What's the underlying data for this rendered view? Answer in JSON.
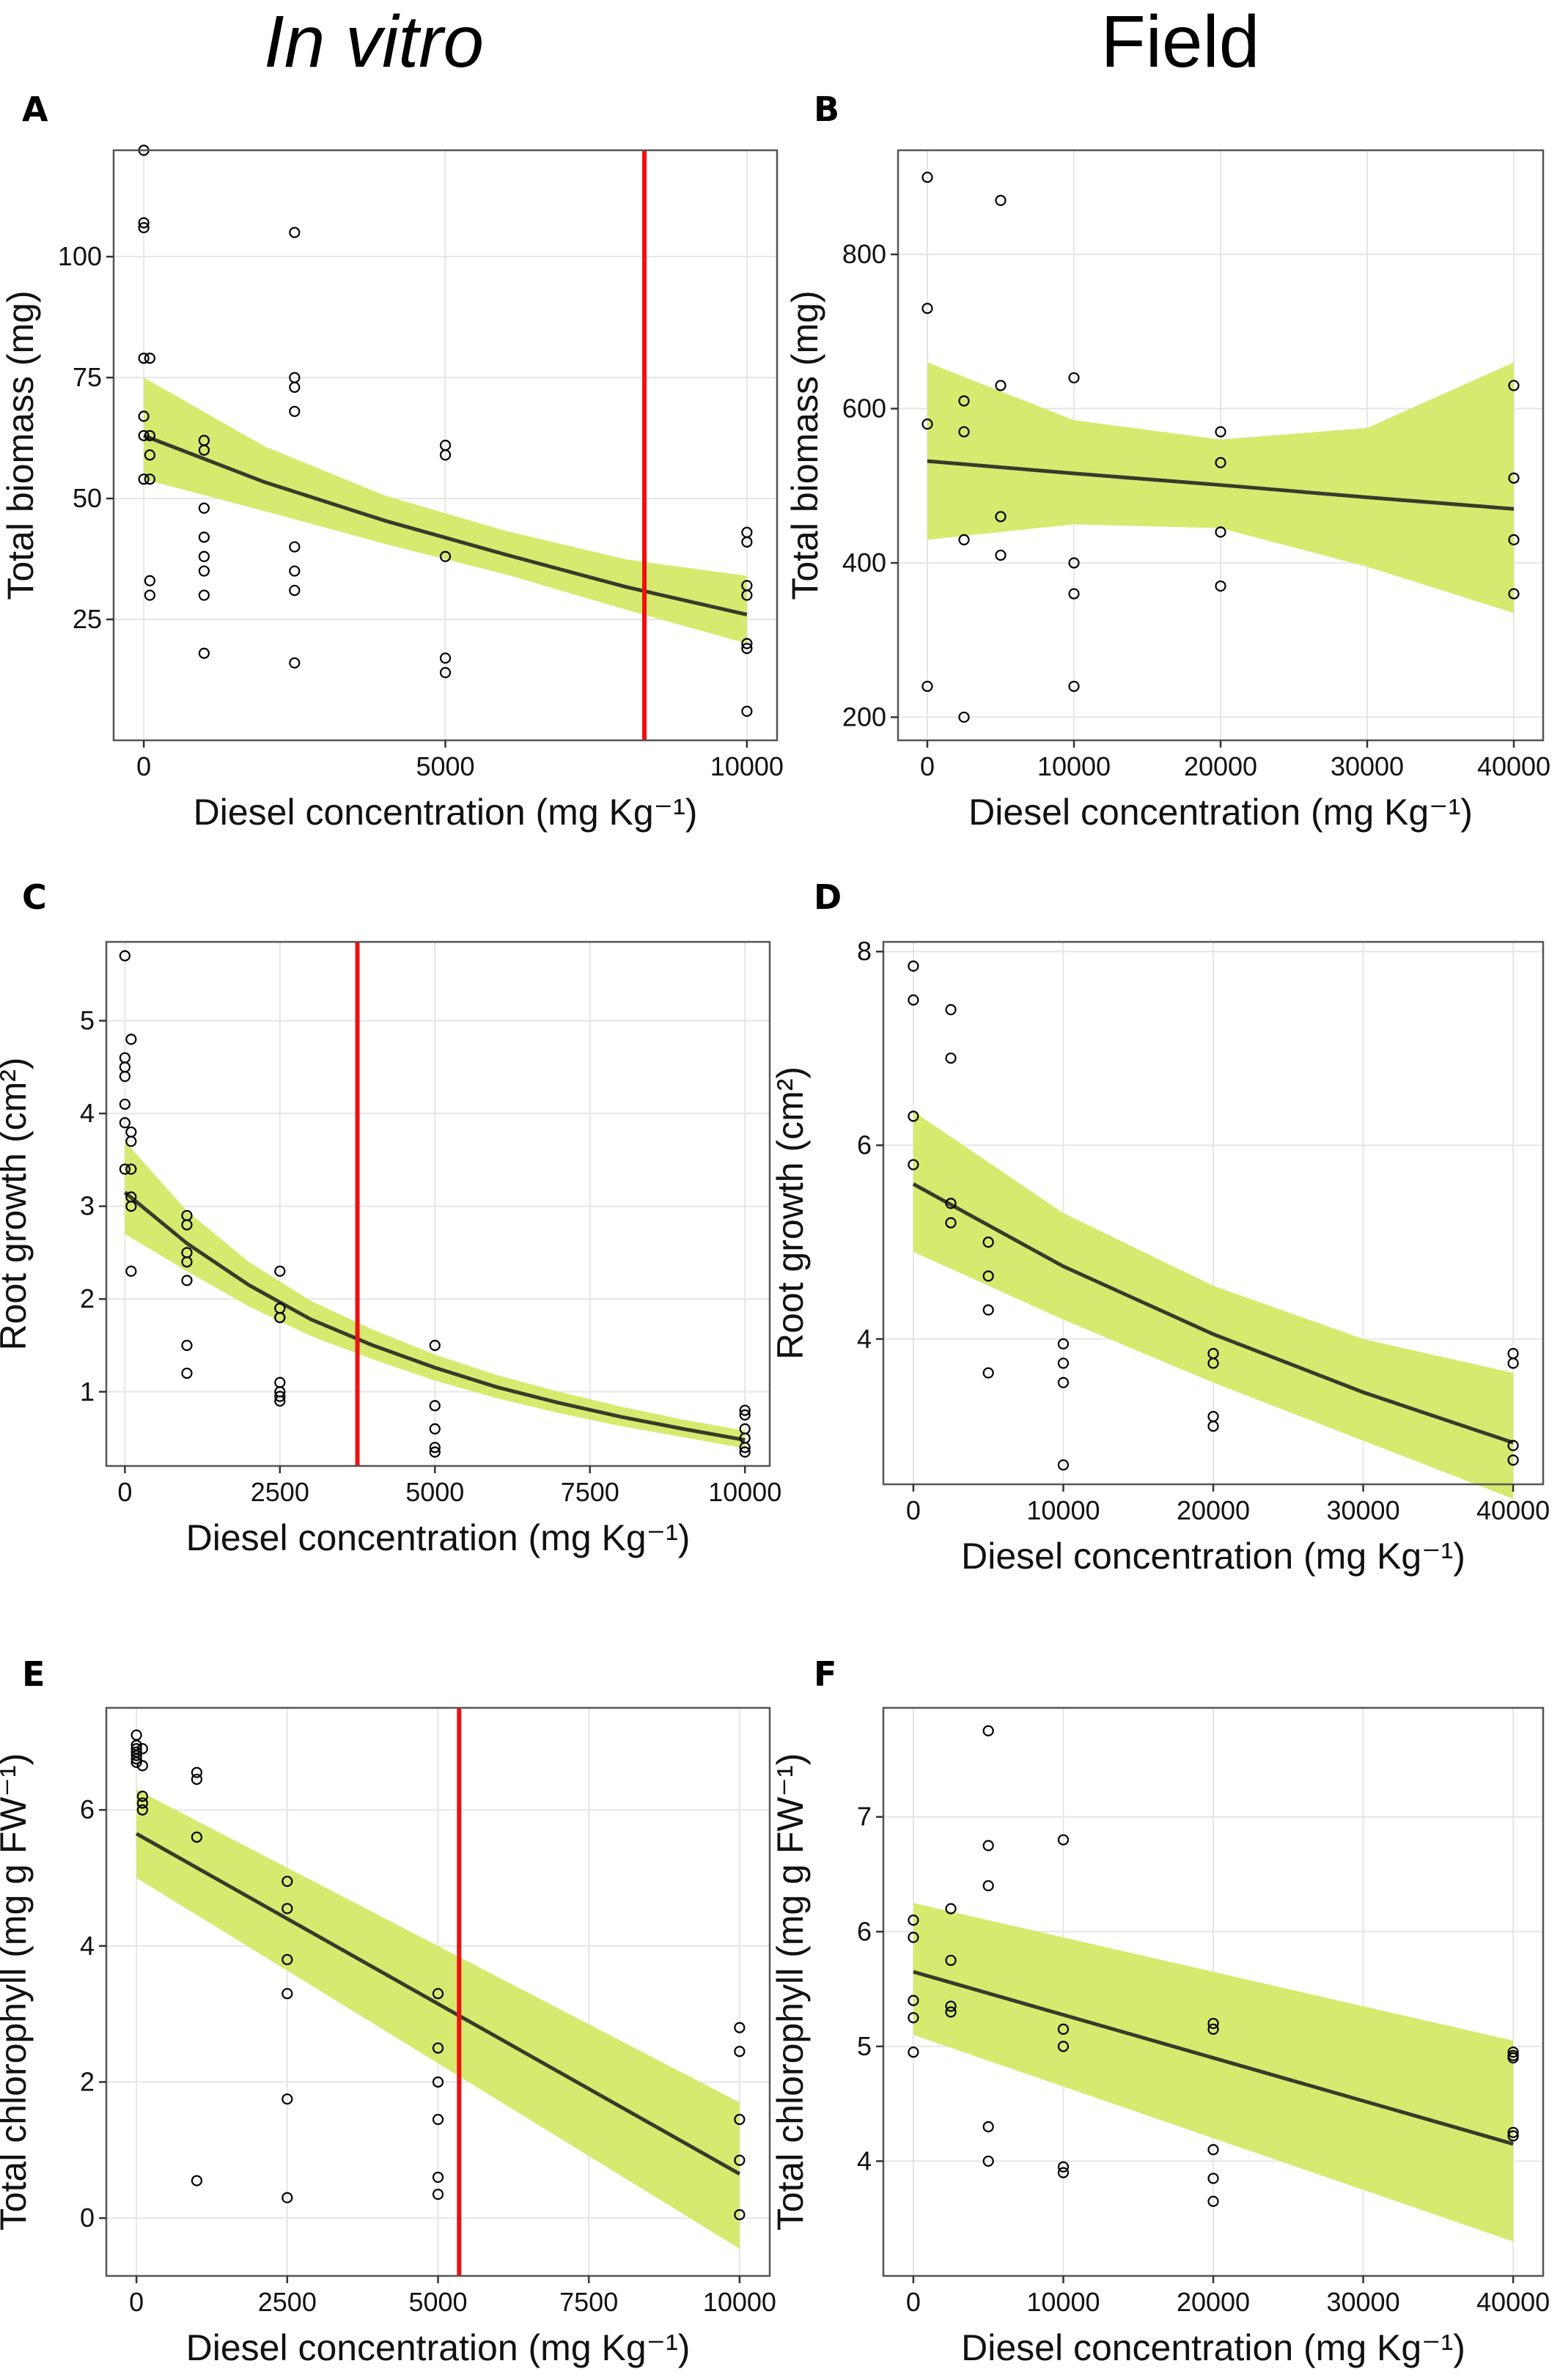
{
  "column_titles": {
    "left": "In vitro",
    "right": "Field"
  },
  "style": {
    "ribbon": "#d6ea6f",
    "fit_line": "#3a3a2a",
    "threshold": "#ee1111",
    "grid": "#e6e6e6",
    "frame": "#555555"
  },
  "chart_data": [
    {
      "panel": "A",
      "type": "scatter",
      "xlabel": "Diesel concentration (mg Kg⁻¹)",
      "ylabel": "Total biomass (mg)",
      "xlim": [
        -500,
        10500
      ],
      "ylim": [
        0,
        122
      ],
      "xticks": [
        0,
        5000,
        10000
      ],
      "yticks": [
        25,
        50,
        75,
        100
      ],
      "grid": true,
      "points": [
        [
          0,
          122
        ],
        [
          0,
          107
        ],
        [
          0,
          106
        ],
        [
          0,
          79
        ],
        [
          0,
          67
        ],
        [
          0,
          63
        ],
        [
          0,
          54
        ],
        [
          100,
          79
        ],
        [
          100,
          63
        ],
        [
          100,
          59
        ],
        [
          100,
          54
        ],
        [
          100,
          33
        ],
        [
          100,
          30
        ],
        [
          1000,
          62
        ],
        [
          1000,
          60
        ],
        [
          1000,
          48
        ],
        [
          1000,
          42
        ],
        [
          1000,
          38
        ],
        [
          1000,
          35
        ],
        [
          1000,
          30
        ],
        [
          1000,
          18
        ],
        [
          2500,
          105
        ],
        [
          2500,
          75
        ],
        [
          2500,
          73
        ],
        [
          2500,
          68
        ],
        [
          2500,
          40
        ],
        [
          2500,
          35
        ],
        [
          2500,
          31
        ],
        [
          2500,
          16
        ],
        [
          5000,
          61
        ],
        [
          5000,
          59
        ],
        [
          5000,
          38
        ],
        [
          5000,
          17
        ],
        [
          5000,
          14
        ],
        [
          10000,
          43
        ],
        [
          10000,
          41
        ],
        [
          10000,
          32
        ],
        [
          10000,
          30
        ],
        [
          10000,
          20
        ],
        [
          10000,
          19
        ],
        [
          10000,
          6
        ]
      ],
      "fit": {
        "x": [
          0,
          2000,
          4000,
          6000,
          8000,
          10000
        ],
        "y": [
          63,
          53.4,
          45.4,
          38.4,
          31.7,
          26
        ],
        "lower": [
          54,
          47.4,
          40.6,
          34.3,
          27,
          20
        ],
        "upper": [
          75,
          60.8,
          50.6,
          43.3,
          37.4,
          34
        ]
      },
      "threshold_x": 8300
    },
    {
      "panel": "B",
      "type": "scatter",
      "xlabel": "Diesel concentration (mg Kg⁻¹)",
      "ylabel": "Total biomass (mg)",
      "xlim": [
        -2000,
        42000
      ],
      "ylim": [
        170,
        935
      ],
      "xticks": [
        0,
        10000,
        20000,
        30000,
        40000
      ],
      "yticks": [
        200,
        400,
        600,
        800
      ],
      "grid": true,
      "points": [
        [
          0,
          900
        ],
        [
          0,
          730
        ],
        [
          0,
          580
        ],
        [
          0,
          240
        ],
        [
          2500,
          610
        ],
        [
          2500,
          570
        ],
        [
          2500,
          430
        ],
        [
          2500,
          200
        ],
        [
          5000,
          870
        ],
        [
          5000,
          630
        ],
        [
          5000,
          460
        ],
        [
          5000,
          410
        ],
        [
          10000,
          640
        ],
        [
          10000,
          400
        ],
        [
          10000,
          360
        ],
        [
          10000,
          240
        ],
        [
          20000,
          570
        ],
        [
          20000,
          530
        ],
        [
          20000,
          440
        ],
        [
          20000,
          370
        ],
        [
          40000,
          630
        ],
        [
          40000,
          510
        ],
        [
          40000,
          430
        ],
        [
          40000,
          360
        ]
      ],
      "fit": {
        "x": [
          0,
          10000,
          20000,
          30000,
          40000
        ],
        "y": [
          532,
          516,
          501,
          485,
          470
        ],
        "lower": [
          430,
          450,
          445,
          395,
          335
        ],
        "upper": [
          660,
          585,
          560,
          575,
          660
        ]
      },
      "threshold_x": null
    },
    {
      "panel": "C",
      "type": "scatter",
      "xlabel": "Diesel concentration (mg Kg⁻¹)",
      "ylabel": "Root growth (cm²)",
      "xlim": [
        -300,
        10400
      ],
      "ylim": [
        0.2,
        5.85
      ],
      "xticks": [
        0,
        2500,
        5000,
        7500,
        10000
      ],
      "yticks": [
        1,
        2,
        3,
        4,
        5
      ],
      "grid": true,
      "points": [
        [
          0,
          5.7
        ],
        [
          0,
          4.6
        ],
        [
          0,
          4.5
        ],
        [
          0,
          4.4
        ],
        [
          0,
          4.1
        ],
        [
          0,
          3.9
        ],
        [
          0,
          3.4
        ],
        [
          100,
          4.8
        ],
        [
          100,
          3.8
        ],
        [
          100,
          3.7
        ],
        [
          100,
          3.4
        ],
        [
          100,
          3.1
        ],
        [
          100,
          3.0
        ],
        [
          100,
          2.3
        ],
        [
          1000,
          2.9
        ],
        [
          1000,
          2.8
        ],
        [
          1000,
          2.5
        ],
        [
          1000,
          2.4
        ],
        [
          1000,
          2.2
        ],
        [
          1000,
          1.5
        ],
        [
          1000,
          1.2
        ],
        [
          2500,
          2.3
        ],
        [
          2500,
          1.9
        ],
        [
          2500,
          1.8
        ],
        [
          2500,
          1.8
        ],
        [
          2500,
          1.1
        ],
        [
          2500,
          1.0
        ],
        [
          2500,
          0.95
        ],
        [
          2500,
          0.9
        ],
        [
          5000,
          1.5
        ],
        [
          5000,
          0.85
        ],
        [
          5000,
          0.6
        ],
        [
          5000,
          0.4
        ],
        [
          5000,
          0.35
        ],
        [
          10000,
          0.8
        ],
        [
          10000,
          0.75
        ],
        [
          10000,
          0.6
        ],
        [
          10000,
          0.5
        ],
        [
          10000,
          0.4
        ],
        [
          10000,
          0.35
        ]
      ],
      "fit": {
        "x": [
          0,
          1000,
          2000,
          3000,
          4000,
          5000,
          6000,
          7000,
          8000,
          9000,
          10000
        ],
        "y": [
          3.15,
          2.6,
          2.15,
          1.78,
          1.5,
          1.26,
          1.05,
          0.88,
          0.73,
          0.6,
          0.48
        ],
        "lower": [
          2.7,
          2.3,
          1.92,
          1.6,
          1.35,
          1.12,
          0.93,
          0.77,
          0.63,
          0.51,
          0.39
        ],
        "upper": [
          3.7,
          2.95,
          2.4,
          1.98,
          1.67,
          1.4,
          1.18,
          1.0,
          0.84,
          0.7,
          0.58
        ]
      },
      "threshold_x": 3750
    },
    {
      "panel": "D",
      "type": "scatter",
      "xlabel": "Diesel concentration (mg Kg⁻¹)",
      "ylabel": "Root growth (cm²)",
      "xlim": [
        -2000,
        42000
      ],
      "ylim": [
        2.5,
        8.1
      ],
      "xticks": [
        0,
        10000,
        20000,
        30000,
        40000
      ],
      "yticks": [
        4,
        6,
        8
      ],
      "grid": true,
      "points": [
        [
          0,
          7.85
        ],
        [
          0,
          7.5
        ],
        [
          0,
          6.3
        ],
        [
          0,
          5.8
        ],
        [
          2500,
          7.4
        ],
        [
          2500,
          6.9
        ],
        [
          2500,
          5.4
        ],
        [
          2500,
          5.2
        ],
        [
          5000,
          5.0
        ],
        [
          5000,
          4.65
        ],
        [
          5000,
          4.3
        ],
        [
          5000,
          3.65
        ],
        [
          10000,
          3.95
        ],
        [
          10000,
          3.75
        ],
        [
          10000,
          3.55
        ],
        [
          10000,
          2.7
        ],
        [
          20000,
          3.85
        ],
        [
          20000,
          3.75
        ],
        [
          20000,
          3.2
        ],
        [
          20000,
          3.1
        ],
        [
          40000,
          3.85
        ],
        [
          40000,
          3.75
        ],
        [
          40000,
          2.9
        ],
        [
          40000,
          2.75
        ]
      ],
      "fit": {
        "x": [
          0,
          10000,
          20000,
          30000,
          40000
        ],
        "y": [
          5.6,
          4.75,
          4.05,
          3.45,
          2.93
        ],
        "lower": [
          4.9,
          4.2,
          3.55,
          2.95,
          2.35
        ],
        "upper": [
          6.35,
          5.3,
          4.55,
          4.0,
          3.65
        ]
      },
      "threshold_x": null
    },
    {
      "panel": "E",
      "type": "scatter",
      "xlabel": "Diesel concentration (mg Kg⁻¹)",
      "ylabel": "Total chlorophyll (mg g FW⁻¹)",
      "xlim": [
        -500,
        10500
      ],
      "ylim": [
        -0.85,
        7.5
      ],
      "xticks": [
        0,
        2500,
        5000,
        7500,
        10000
      ],
      "yticks": [
        0,
        2,
        4,
        6
      ],
      "grid": true,
      "points": [
        [
          0,
          7.1
        ],
        [
          0,
          6.95
        ],
        [
          0,
          6.9
        ],
        [
          0,
          6.85
        ],
        [
          0,
          6.8
        ],
        [
          0,
          6.75
        ],
        [
          0,
          6.7
        ],
        [
          100,
          6.9
        ],
        [
          100,
          6.65
        ],
        [
          100,
          6.2
        ],
        [
          100,
          6.1
        ],
        [
          100,
          6.0
        ],
        [
          1000,
          6.55
        ],
        [
          1000,
          6.45
        ],
        [
          1000,
          5.6
        ],
        [
          1000,
          0.55
        ],
        [
          2500,
          4.95
        ],
        [
          2500,
          4.55
        ],
        [
          2500,
          3.8
        ],
        [
          2500,
          3.3
        ],
        [
          2500,
          1.75
        ],
        [
          2500,
          0.3
        ],
        [
          5000,
          3.3
        ],
        [
          5000,
          2.5
        ],
        [
          5000,
          2.0
        ],
        [
          5000,
          1.45
        ],
        [
          5000,
          0.6
        ],
        [
          5000,
          0.35
        ],
        [
          10000,
          2.8
        ],
        [
          10000,
          2.45
        ],
        [
          10000,
          1.45
        ],
        [
          10000,
          0.85
        ],
        [
          10000,
          0.05
        ]
      ],
      "fit": {
        "x": [
          0,
          10000
        ],
        "y": [
          5.65,
          0.65
        ],
        "lower": [
          5.0,
          -0.45
        ],
        "upper": [
          6.3,
          1.7
        ]
      },
      "threshold_x": 5350
    },
    {
      "panel": "F",
      "type": "scatter",
      "xlabel": "Diesel concentration (mg Kg⁻¹)",
      "ylabel": "Total chlorophyll (mg g FW⁻¹)",
      "xlim": [
        -2000,
        42000
      ],
      "ylim": [
        3.0,
        7.95
      ],
      "xticks": [
        0,
        10000,
        20000,
        30000,
        40000
      ],
      "yticks": [
        4,
        5,
        6,
        7
      ],
      "grid": true,
      "points": [
        [
          0,
          6.1
        ],
        [
          0,
          5.95
        ],
        [
          0,
          5.4
        ],
        [
          0,
          5.25
        ],
        [
          0,
          4.95
        ],
        [
          2500,
          6.2
        ],
        [
          2500,
          5.75
        ],
        [
          2500,
          5.35
        ],
        [
          2500,
          5.3
        ],
        [
          5000,
          7.75
        ],
        [
          5000,
          6.75
        ],
        [
          5000,
          6.4
        ],
        [
          5000,
          4.3
        ],
        [
          5000,
          4.0
        ],
        [
          10000,
          6.8
        ],
        [
          10000,
          5.15
        ],
        [
          10000,
          5.0
        ],
        [
          10000,
          3.95
        ],
        [
          10000,
          3.9
        ],
        [
          20000,
          5.2
        ],
        [
          20000,
          5.15
        ],
        [
          20000,
          4.1
        ],
        [
          20000,
          3.85
        ],
        [
          20000,
          3.65
        ],
        [
          40000,
          4.95
        ],
        [
          40000,
          4.92
        ],
        [
          40000,
          4.9
        ],
        [
          40000,
          4.25
        ],
        [
          40000,
          4.22
        ]
      ],
      "fit": {
        "x": [
          0,
          40000
        ],
        "y": [
          5.65,
          4.15
        ],
        "lower": [
          5.1,
          3.3
        ],
        "upper": [
          6.25,
          5.05
        ]
      },
      "threshold_x": null
    }
  ]
}
